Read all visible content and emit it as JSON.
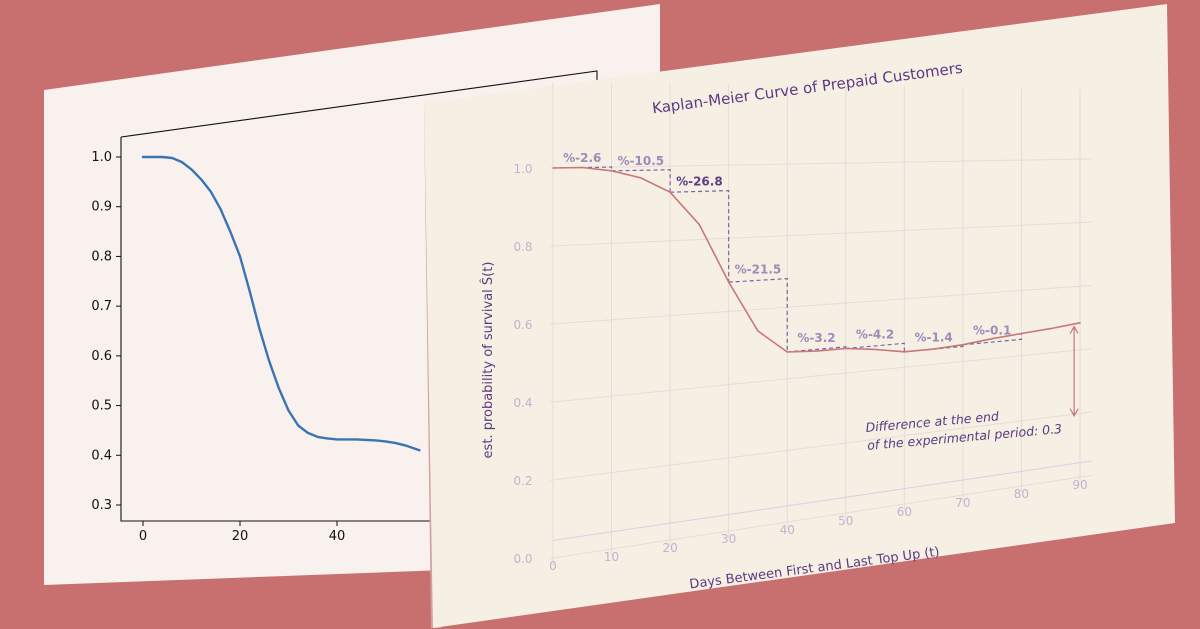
{
  "colors": {
    "background": "#c87070",
    "back_panel": "#f8f1ee",
    "front_panel": "#f6efe4",
    "back_line": "#3b74b3",
    "front_line": "#c8777a",
    "step_line": "#7a64a3",
    "text_purple": "#5b3a80"
  },
  "chart_data": [
    {
      "type": "line",
      "title": "",
      "xlabel": "",
      "ylabel": "",
      "xlim": [
        -4,
        58
      ],
      "ylim": [
        0.28,
        1.05
      ],
      "x_ticks": [
        "0",
        "20",
        "40"
      ],
      "y_ticks": [
        "1.0",
        "0.9",
        "0.8",
        "0.7",
        "0.6",
        "0.5",
        "0.4",
        "0.3"
      ],
      "x": [
        0,
        2,
        4,
        6,
        8,
        10,
        12,
        14,
        16,
        18,
        20,
        22,
        24,
        26,
        28,
        30,
        32,
        34,
        36,
        38,
        40,
        42,
        44,
        46,
        48,
        50,
        52,
        54,
        57
      ],
      "y": [
        1.0,
        1.0,
        1.0,
        0.998,
        0.99,
        0.975,
        0.955,
        0.93,
        0.895,
        0.85,
        0.8,
        0.73,
        0.655,
        0.59,
        0.535,
        0.49,
        0.46,
        0.445,
        0.437,
        0.434,
        0.432,
        0.432,
        0.432,
        0.431,
        0.43,
        0.428,
        0.425,
        0.42,
        0.41
      ]
    },
    {
      "type": "line",
      "title": "Kaplan-Meier Curve of Prepaid Customers",
      "xlabel": "Days Between First and Last Top Up (t)",
      "ylabel": "est. probability of survival Ŝ(t)",
      "xlim": [
        0,
        90
      ],
      "ylim": [
        0.0,
        1.05
      ],
      "x_ticks": [
        "0",
        "10",
        "20",
        "30",
        "40",
        "50",
        "60",
        "70",
        "80",
        "90"
      ],
      "y_ticks": [
        "0.0",
        "0.2",
        "0.4",
        "0.6",
        "0.8",
        "1.0"
      ],
      "x": [
        0,
        5,
        10,
        15,
        20,
        25,
        30,
        35,
        40,
        45,
        50,
        55,
        60,
        65,
        70,
        75,
        80,
        85,
        90
      ],
      "y": [
        1.0,
        1.0,
        0.99,
        0.97,
        0.93,
        0.84,
        0.68,
        0.54,
        0.475,
        0.47,
        0.47,
        0.46,
        0.445,
        0.445,
        0.45,
        0.46,
        0.468,
        0.475,
        0.485
      ],
      "step_annotations": [
        {
          "x0": 0,
          "x1": 10,
          "y_top": 1.0,
          "label": "%-2.6",
          "bold": false
        },
        {
          "x0": 10,
          "x1": 20,
          "y_top": 0.99,
          "label": "%-10.5",
          "bold": false
        },
        {
          "x0": 20,
          "x1": 30,
          "y_top": 0.93,
          "label": "%-26.8",
          "bold": true
        },
        {
          "x0": 30,
          "x1": 40,
          "y_top": 0.68,
          "label": "%-21.5",
          "bold": false
        },
        {
          "x0": 40,
          "x1": 50,
          "y_top": 0.475,
          "label": "%-3.2",
          "bold": false
        },
        {
          "x0": 50,
          "x1": 60,
          "y_top": 0.47,
          "label": "%-4.2",
          "bold": false
        },
        {
          "x0": 60,
          "x1": 70,
          "y_top": 0.445,
          "label": "%-1.4",
          "bold": false
        },
        {
          "x0": 70,
          "x1": 80,
          "y_top": 0.45,
          "label": "%-0.1",
          "bold": false
        }
      ],
      "annotation_line1": "Difference at the end",
      "annotation_line2": "of the experimental period: 0.3",
      "difference_value": 0.3
    }
  ]
}
